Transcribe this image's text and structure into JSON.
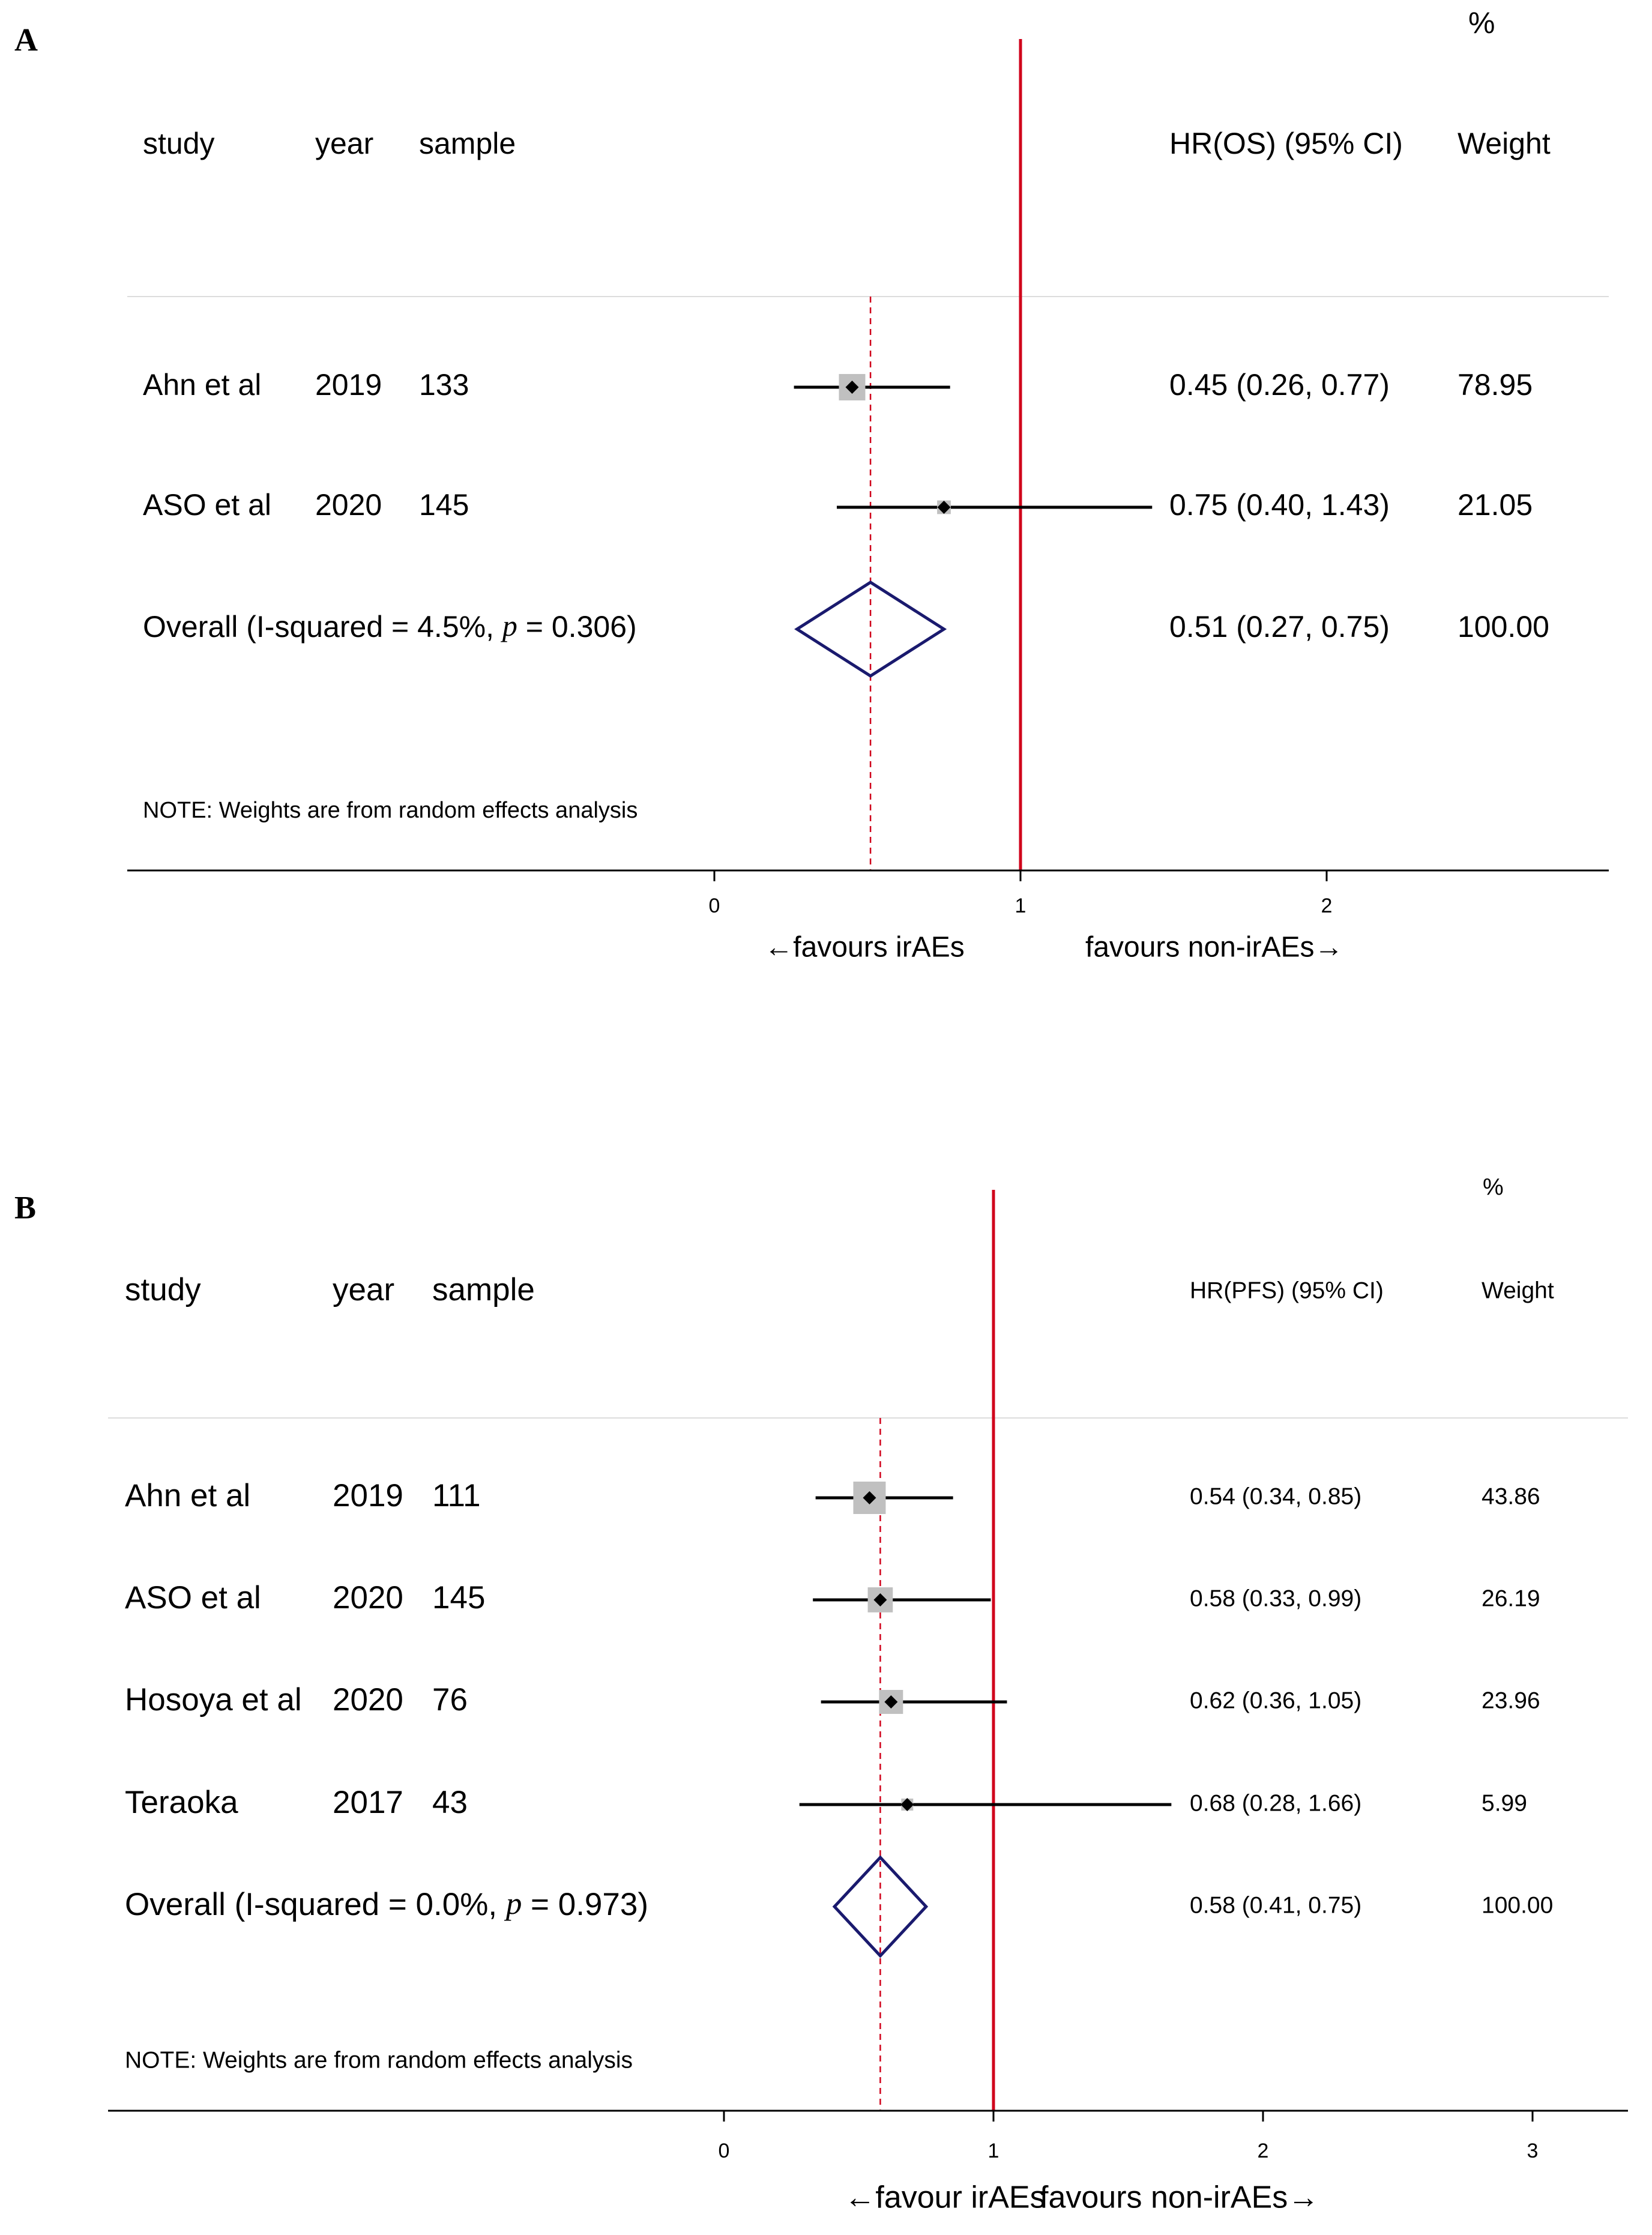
{
  "chart_data": [
    {
      "type": "forest",
      "panel_label": "A",
      "headers": {
        "study": "study",
        "year": "year",
        "sample": "sample",
        "effect": "HR(OS) (95% CI)",
        "weight_unit": "%",
        "weight": "Weight"
      },
      "x_ticks": [
        0,
        1,
        2
      ],
      "x_ticks_text": [
        "0",
        "1",
        "2"
      ],
      "xlim": [
        0,
        2.9
      ],
      "null_line": 1,
      "overall_line": 0.51,
      "rows": [
        {
          "study": "Ahn et al",
          "year": "2019",
          "sample": "133",
          "hr": 0.45,
          "lower": 0.26,
          "upper": 0.77,
          "weight": 78.95,
          "text": "0.45 (0.26, 0.77)",
          "weight_text": "78.95"
        },
        {
          "study": "ASO et al",
          "year": "2020",
          "sample": "145",
          "hr": 0.75,
          "lower": 0.4,
          "upper": 1.43,
          "weight": 21.05,
          "text": "0.75 (0.40, 1.43)",
          "weight_text": "21.05"
        }
      ],
      "overall": {
        "label_prefix": "Overall  (I-squared = 4.5%, ",
        "label_p": "p",
        "label_suffix": " = 0.306)",
        "hr": 0.51,
        "lower": 0.27,
        "upper": 0.75,
        "text": "0.51 (0.27, 0.75)",
        "weight_text": "100.00"
      },
      "note": "NOTE: Weights are from random effects analysis",
      "favours_left": "←favours irAEs",
      "favours_right": "favours non-irAEs→",
      "colors": {
        "null_line": "#d0021b",
        "overall_line": "#d0021b",
        "diamond": "#1a1a6e",
        "box": "#c0c0c0",
        "divider": "#dcdcdc",
        "axis": "#000000"
      }
    },
    {
      "type": "forest",
      "panel_label": "B",
      "headers": {
        "study": "study",
        "year": "year",
        "sample": "sample",
        "effect": "HR(PFS) (95% CI)",
        "weight_unit": "%",
        "weight": "Weight"
      },
      "x_ticks": [
        0,
        1,
        2,
        3
      ],
      "x_ticks_text": [
        "0",
        "1",
        "2",
        "3"
      ],
      "xlim": [
        0,
        3.35
      ],
      "null_line": 1,
      "overall_line": 0.58,
      "rows": [
        {
          "study": "Ahn et al",
          "year": "2019",
          "sample": "111",
          "hr": 0.54,
          "lower": 0.34,
          "upper": 0.85,
          "weight": 43.86,
          "text": "0.54 (0.34, 0.85)",
          "weight_text": "43.86"
        },
        {
          "study": "ASO et al",
          "year": "2020",
          "sample": "145",
          "hr": 0.58,
          "lower": 0.33,
          "upper": 0.99,
          "weight": 26.19,
          "text": "0.58 (0.33, 0.99)",
          "weight_text": "26.19"
        },
        {
          "study": "Hosoya et al",
          "year": "2020",
          "sample": "76",
          "hr": 0.62,
          "lower": 0.36,
          "upper": 1.05,
          "weight": 23.96,
          "text": "0.62 (0.36, 1.05)",
          "weight_text": "23.96"
        },
        {
          "study": "Teraoka",
          "year": "2017",
          "sample": "43",
          "hr": 0.68,
          "lower": 0.28,
          "upper": 1.66,
          "weight": 5.99,
          "text": "0.68 (0.28, 1.66)",
          "weight_text": "5.99"
        }
      ],
      "overall": {
        "label_prefix": "Overall  (I-squared = 0.0%, ",
        "label_p": "p",
        "label_suffix": " = 0.973)",
        "hr": 0.58,
        "lower": 0.41,
        "upper": 0.75,
        "text": "0.58 (0.41, 0.75)",
        "weight_text": "100.00"
      },
      "note": "NOTE: Weights are from random effects analysis",
      "favours_left": "←favour irAEs",
      "favours_right": "favours non-irAEs→",
      "colors": {
        "null_line": "#d0021b",
        "overall_line": "#d0021b",
        "diamond": "#1a1a6e",
        "box": "#c0c0c0",
        "divider": "#dcdcdc",
        "axis": "#000000"
      }
    }
  ]
}
